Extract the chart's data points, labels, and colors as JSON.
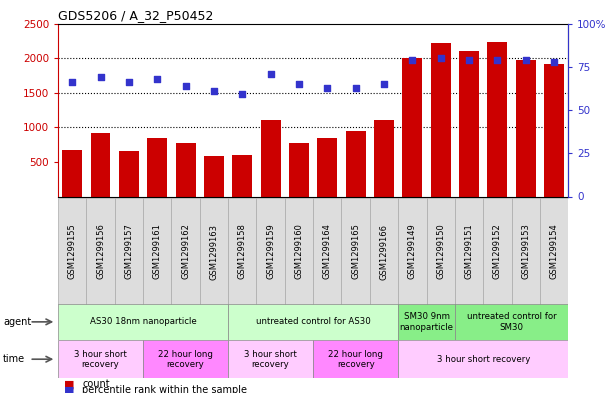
{
  "title": "GDS5206 / A_32_P50452",
  "samples": [
    "GSM1299155",
    "GSM1299156",
    "GSM1299157",
    "GSM1299161",
    "GSM1299162",
    "GSM1299163",
    "GSM1299158",
    "GSM1299159",
    "GSM1299160",
    "GSM1299164",
    "GSM1299165",
    "GSM1299166",
    "GSM1299149",
    "GSM1299150",
    "GSM1299151",
    "GSM1299152",
    "GSM1299153",
    "GSM1299154"
  ],
  "counts": [
    670,
    920,
    660,
    840,
    780,
    580,
    600,
    1100,
    770,
    840,
    940,
    1100,
    2000,
    2220,
    2100,
    2230,
    1970,
    1920
  ],
  "percentiles": [
    66,
    69,
    66,
    68,
    64,
    61,
    59,
    71,
    65,
    63,
    63,
    65,
    79,
    80,
    79,
    79,
    79,
    78
  ],
  "ylim_left": [
    0,
    2500
  ],
  "ylim_right": [
    0,
    100
  ],
  "bar_color": "#cc0000",
  "dot_color": "#3333cc",
  "agent_groups": [
    {
      "label": "AS30 18nm nanoparticle",
      "start": 0,
      "end": 6,
      "color": "#ccffcc"
    },
    {
      "label": "untreated control for AS30",
      "start": 6,
      "end": 12,
      "color": "#ccffcc"
    },
    {
      "label": "SM30 9nm\nnanoparticle",
      "start": 12,
      "end": 14,
      "color": "#88ee88"
    },
    {
      "label": "untreated control for\nSM30",
      "start": 14,
      "end": 18,
      "color": "#88ee88"
    }
  ],
  "time_groups": [
    {
      "label": "3 hour short\nrecovery",
      "start": 0,
      "end": 3,
      "color": "#ffccff"
    },
    {
      "label": "22 hour long\nrecovery",
      "start": 3,
      "end": 6,
      "color": "#ff88ff"
    },
    {
      "label": "3 hour short\nrecovery",
      "start": 6,
      "end": 9,
      "color": "#ffccff"
    },
    {
      "label": "22 hour long\nrecovery",
      "start": 9,
      "end": 12,
      "color": "#ff88ff"
    },
    {
      "label": "3 hour short recovery",
      "start": 12,
      "end": 18,
      "color": "#ffccff"
    }
  ],
  "axis_left_color": "#cc0000",
  "axis_right_color": "#3333cc",
  "sample_box_color": "#dddddd",
  "sample_box_edge": "#aaaaaa"
}
